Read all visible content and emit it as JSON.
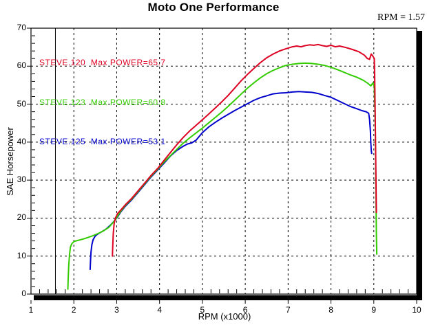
{
  "title": "Moto One Performance",
  "readout": "RPM = 1.57",
  "legend": [
    {
      "label": "STEVE.120  Max POWER=65.7",
      "color": "#dd0022"
    },
    {
      "label": "STEVE.123  Max POWER=60.8",
      "color": "#33cc00"
    },
    {
      "label": "STEVE.125  Max POWER=53.1",
      "color": "#0000cc"
    }
  ],
  "chart_data": {
    "type": "line",
    "title": "Moto One Performance",
    "xlabel": "RPM (x1000)",
    "ylabel": "SAE Horsepower",
    "xlim": [
      1,
      10
    ],
    "ylim": [
      0,
      70
    ],
    "x_ticks": [
      1,
      2,
      3,
      4,
      5,
      6,
      7,
      8,
      9,
      10
    ],
    "y_ticks": [
      0,
      10,
      20,
      30,
      40,
      50,
      60,
      70
    ],
    "x_minor_step": 0.2,
    "y_minor_step": 2,
    "grid": true,
    "grid_style": "dashed",
    "cursor_rpm": 1.57,
    "frame_color": "#000000",
    "series": [
      {
        "name": "STEVE.125",
        "max_power": 53.1,
        "color": "#0000cc",
        "points": [
          [
            2.38,
            6.5
          ],
          [
            2.39,
            9.0
          ],
          [
            2.4,
            11.0
          ],
          [
            2.42,
            13.0
          ],
          [
            2.45,
            14.3
          ],
          [
            2.5,
            15.3
          ],
          [
            2.57,
            15.9
          ],
          [
            2.65,
            16.4
          ],
          [
            2.75,
            17.1
          ],
          [
            2.85,
            18.1
          ],
          [
            2.94,
            19.2
          ],
          [
            3.02,
            20.3
          ],
          [
            3.1,
            21.7
          ],
          [
            3.2,
            23.1
          ],
          [
            3.35,
            24.8
          ],
          [
            3.5,
            26.8
          ],
          [
            3.65,
            28.8
          ],
          [
            3.8,
            30.8
          ],
          [
            3.95,
            32.6
          ],
          [
            4.1,
            34.4
          ],
          [
            4.25,
            36.3
          ],
          [
            4.4,
            37.8
          ],
          [
            4.55,
            38.9
          ],
          [
            4.65,
            39.5
          ],
          [
            4.75,
            39.8
          ],
          [
            4.85,
            40.5
          ],
          [
            5.0,
            42.5
          ],
          [
            5.15,
            44.0
          ],
          [
            5.3,
            45.2
          ],
          [
            5.45,
            46.3
          ],
          [
            5.6,
            47.3
          ],
          [
            5.75,
            48.3
          ],
          [
            5.9,
            49.2
          ],
          [
            6.05,
            50.1
          ],
          [
            6.2,
            51.0
          ],
          [
            6.35,
            51.7
          ],
          [
            6.5,
            52.2
          ],
          [
            6.65,
            52.7
          ],
          [
            6.8,
            52.9
          ],
          [
            6.95,
            53.0
          ],
          [
            7.1,
            53.2
          ],
          [
            7.25,
            53.3
          ],
          [
            7.4,
            53.2
          ],
          [
            7.55,
            53.1
          ],
          [
            7.7,
            52.8
          ],
          [
            7.85,
            52.3
          ],
          [
            8.0,
            51.8
          ],
          [
            8.15,
            51.0
          ],
          [
            8.3,
            50.2
          ],
          [
            8.45,
            49.4
          ],
          [
            8.6,
            48.8
          ],
          [
            8.72,
            48.3
          ],
          [
            8.82,
            48.0
          ],
          [
            8.88,
            47.6
          ],
          [
            8.9,
            46.0
          ],
          [
            8.92,
            43.0
          ],
          [
            8.93,
            40.0
          ],
          [
            8.94,
            38.0
          ],
          [
            8.95,
            37.0
          ]
        ]
      },
      {
        "name": "STEVE.123",
        "max_power": 60.8,
        "color": "#33cc00",
        "points": [
          [
            1.86,
            1.3
          ],
          [
            1.87,
            4.5
          ],
          [
            1.88,
            7.5
          ],
          [
            1.9,
            10.5
          ],
          [
            1.92,
            12.3
          ],
          [
            1.95,
            13.2
          ],
          [
            2.0,
            13.8
          ],
          [
            2.05,
            14.0
          ],
          [
            2.12,
            14.2
          ],
          [
            2.22,
            14.5
          ],
          [
            2.33,
            14.9
          ],
          [
            2.45,
            15.4
          ],
          [
            2.58,
            16.0
          ],
          [
            2.7,
            16.7
          ],
          [
            2.82,
            17.6
          ],
          [
            2.92,
            18.9
          ],
          [
            3.0,
            20.1
          ],
          [
            3.1,
            21.9
          ],
          [
            3.2,
            23.3
          ],
          [
            3.35,
            25.0
          ],
          [
            3.5,
            27.0
          ],
          [
            3.65,
            29.0
          ],
          [
            3.8,
            31.0
          ],
          [
            3.95,
            32.8
          ],
          [
            4.1,
            34.7
          ],
          [
            4.25,
            36.4
          ],
          [
            4.4,
            38.1
          ],
          [
            4.55,
            39.7
          ],
          [
            4.7,
            41.1
          ],
          [
            4.85,
            42.4
          ],
          [
            5.0,
            43.7
          ],
          [
            5.15,
            45.1
          ],
          [
            5.3,
            46.5
          ],
          [
            5.45,
            47.9
          ],
          [
            5.6,
            49.4
          ],
          [
            5.75,
            51.0
          ],
          [
            5.9,
            52.6
          ],
          [
            6.05,
            54.2
          ],
          [
            6.2,
            55.6
          ],
          [
            6.35,
            56.9
          ],
          [
            6.5,
            58.0
          ],
          [
            6.65,
            58.9
          ],
          [
            6.8,
            59.6
          ],
          [
            6.95,
            60.2
          ],
          [
            7.1,
            60.5
          ],
          [
            7.25,
            60.7
          ],
          [
            7.4,
            60.8
          ],
          [
            7.55,
            60.7
          ],
          [
            7.7,
            60.5
          ],
          [
            7.85,
            60.2
          ],
          [
            8.0,
            59.7
          ],
          [
            8.15,
            59.1
          ],
          [
            8.3,
            58.4
          ],
          [
            8.45,
            57.7
          ],
          [
            8.6,
            57.1
          ],
          [
            8.75,
            56.3
          ],
          [
            8.87,
            55.4
          ],
          [
            8.93,
            54.8
          ],
          [
            8.98,
            55.6
          ],
          [
            9.01,
            54.6
          ],
          [
            9.03,
            48.0
          ],
          [
            9.04,
            38.0
          ],
          [
            9.05,
            26.0
          ],
          [
            9.06,
            16.0
          ],
          [
            9.07,
            10.5
          ]
        ]
      },
      {
        "name": "STEVE.120",
        "max_power": 65.7,
        "color": "#dd0022",
        "points": [
          [
            2.9,
            10.0
          ],
          [
            2.91,
            13.0
          ],
          [
            2.92,
            16.0
          ],
          [
            2.94,
            18.5
          ],
          [
            2.97,
            20.0
          ],
          [
            3.02,
            21.2
          ],
          [
            3.1,
            22.2
          ],
          [
            3.2,
            23.5
          ],
          [
            3.35,
            25.2
          ],
          [
            3.5,
            27.2
          ],
          [
            3.65,
            29.2
          ],
          [
            3.8,
            31.2
          ],
          [
            3.95,
            33.0
          ],
          [
            4.1,
            35.1
          ],
          [
            4.25,
            37.2
          ],
          [
            4.4,
            39.3
          ],
          [
            4.55,
            41.2
          ],
          [
            4.7,
            42.9
          ],
          [
            4.85,
            44.4
          ],
          [
            5.0,
            45.9
          ],
          [
            5.15,
            47.4
          ],
          [
            5.3,
            49.0
          ],
          [
            5.45,
            50.6
          ],
          [
            5.6,
            52.3
          ],
          [
            5.75,
            54.2
          ],
          [
            5.9,
            56.1
          ],
          [
            6.05,
            57.8
          ],
          [
            6.2,
            59.4
          ],
          [
            6.35,
            60.9
          ],
          [
            6.5,
            62.2
          ],
          [
            6.65,
            63.2
          ],
          [
            6.8,
            64.0
          ],
          [
            6.95,
            64.6
          ],
          [
            7.1,
            65.1
          ],
          [
            7.2,
            65.3
          ],
          [
            7.3,
            65.1
          ],
          [
            7.4,
            65.4
          ],
          [
            7.5,
            65.6
          ],
          [
            7.6,
            65.5
          ],
          [
            7.7,
            65.7
          ],
          [
            7.8,
            65.4
          ],
          [
            7.9,
            65.2
          ],
          [
            8.0,
            65.5
          ],
          [
            8.1,
            65.1
          ],
          [
            8.2,
            65.3
          ],
          [
            8.35,
            64.9
          ],
          [
            8.5,
            64.4
          ],
          [
            8.65,
            63.8
          ],
          [
            8.78,
            62.9
          ],
          [
            8.85,
            62.0
          ],
          [
            8.9,
            61.8
          ],
          [
            8.94,
            63.2
          ],
          [
            8.98,
            62.6
          ],
          [
            9.01,
            62.0
          ],
          [
            9.02,
            58.0
          ],
          [
            9.03,
            50.0
          ],
          [
            9.04,
            40.0
          ],
          [
            9.05,
            30.0
          ],
          [
            9.06,
            21.5
          ]
        ]
      }
    ]
  }
}
